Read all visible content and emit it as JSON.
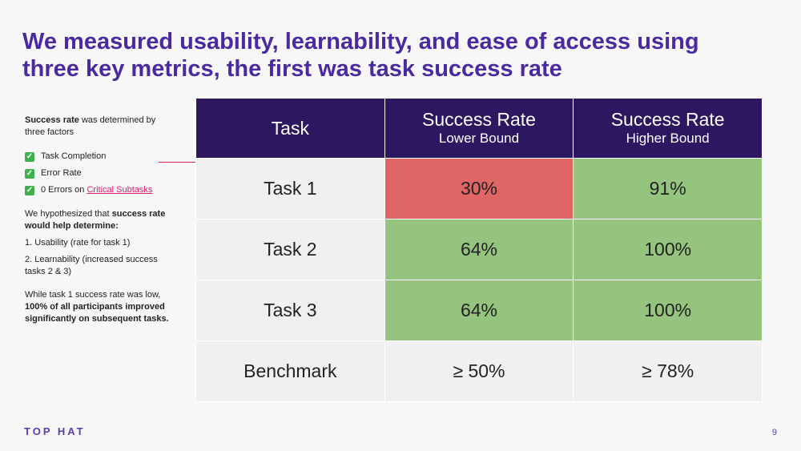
{
  "title": "We measured usability, learnability, and ease of access using three key metrics, the first was task success rate",
  "left": {
    "intro_bold": "Success rate",
    "intro_rest": " was determined by three factors",
    "factors": [
      {
        "pre": "Task Completion",
        "link": ""
      },
      {
        "pre": "Error Rate",
        "link": ""
      },
      {
        "pre": "0 Errors on ",
        "link": "Critical Subtasks"
      }
    ],
    "hyp_pre": "We hypothesized that ",
    "hyp_bold": "success rate would help determine:",
    "hyp_items": [
      "1. Usability (rate for task 1)",
      "2. Learnability (increased success tasks 2 & 3)"
    ],
    "conc_pre": "While task 1 success rate was low, ",
    "conc_bold": "100% of all participants improved significantly on subsequent tasks."
  },
  "table": {
    "headers": [
      {
        "main": "Task",
        "sub": ""
      },
      {
        "main": "Success Rate",
        "sub": "Lower Bound"
      },
      {
        "main": "Success Rate",
        "sub": "Higher Bound"
      }
    ],
    "rows": [
      {
        "task": "Task 1",
        "lower": "30%",
        "higher": "91%",
        "lower_status": "red",
        "higher_status": "green"
      },
      {
        "task": "Task 2",
        "lower": "64%",
        "higher": "100%",
        "lower_status": "green",
        "higher_status": "green"
      },
      {
        "task": "Task 3",
        "lower": "64%",
        "higher": "100%",
        "lower_status": "green",
        "higher_status": "green"
      },
      {
        "task": "Benchmark",
        "lower": "≥ 50%",
        "higher": "≥ 78%",
        "lower_status": "plain",
        "higher_status": "plain"
      }
    ]
  },
  "colors": {
    "title": "#4b2aa0",
    "header_bg": "#2c1760",
    "good": "#94c47d",
    "bad": "#e06666",
    "neutral": "#f0f0f0",
    "link": "#d6206f"
  },
  "footer": {
    "logo": "TOP HAT",
    "page": "9"
  },
  "icons": {
    "check": "check-mark-icon"
  }
}
